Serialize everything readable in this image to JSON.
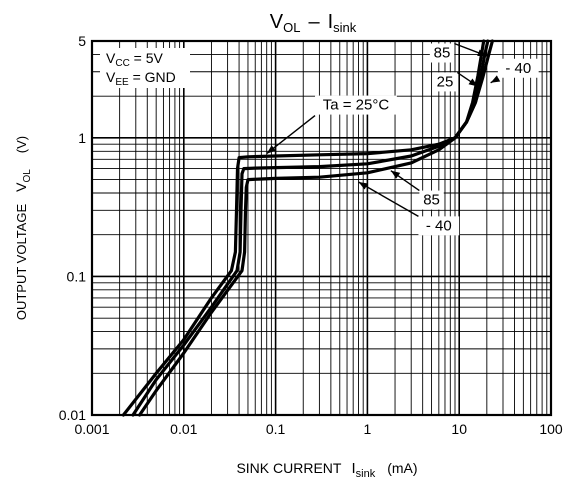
{
  "chart_data": {
    "type": "line",
    "title": {
      "main": "V",
      "main_sub": "OL",
      "sep": "–",
      "rhs": "I",
      "rhs_sub": "sink"
    },
    "xlabel": {
      "main": "SINK CURRENT",
      "sym": "I",
      "sym_sub": "sink",
      "unit": "(mA)"
    },
    "ylabel": {
      "main": "OUTPUT VOLTAGE",
      "sym": "V",
      "sym_sub": "OL",
      "unit": "(V)"
    },
    "x_scale": "log",
    "y_scale": "log",
    "xlim": [
      0.001,
      100
    ],
    "ylim": [
      0.01,
      5
    ],
    "x_ticks": [
      {
        "value": 0.001,
        "label": "0.001"
      },
      {
        "value": 0.01,
        "label": "0.01"
      },
      {
        "value": 0.1,
        "label": "0.1"
      },
      {
        "value": 1,
        "label": "1"
      },
      {
        "value": 10,
        "label": "10"
      },
      {
        "value": 100,
        "label": "100"
      }
    ],
    "y_ticks": [
      {
        "value": 0.01,
        "label": "0.01"
      },
      {
        "value": 0.1,
        "label": "0.1"
      },
      {
        "value": 1,
        "label": "1"
      },
      {
        "value": 5,
        "label": "5"
      }
    ],
    "grid": true,
    "conditions": [
      {
        "sym": "V",
        "sub": "CC",
        "rest": " = 5V"
      },
      {
        "sym": "V",
        "sub": "EE",
        "rest": " = GND"
      }
    ],
    "series": [
      {
        "name": "25",
        "x": [
          0.0022,
          0.005,
          0.01,
          0.02,
          0.033,
          0.0365,
          0.0375,
          0.0385,
          0.04,
          0.05,
          0.1,
          0.3,
          1,
          3,
          6,
          9,
          12,
          14,
          16,
          17.5,
          18.5
        ],
        "y": [
          0.01,
          0.02,
          0.035,
          0.07,
          0.11,
          0.15,
          0.3,
          0.6,
          0.72,
          0.73,
          0.74,
          0.755,
          0.77,
          0.82,
          0.9,
          1.0,
          1.3,
          1.8,
          2.8,
          4.0,
          5.0
        ]
      },
      {
        "name": "85",
        "x": [
          0.0028,
          0.005,
          0.01,
          0.02,
          0.038,
          0.041,
          0.042,
          0.043,
          0.045,
          0.06,
          0.1,
          0.3,
          1,
          3,
          6,
          9,
          12,
          15,
          17,
          19,
          20.5
        ],
        "y": [
          0.01,
          0.018,
          0.032,
          0.06,
          0.11,
          0.15,
          0.3,
          0.55,
          0.6,
          0.605,
          0.61,
          0.62,
          0.65,
          0.74,
          0.87,
          1.0,
          1.3,
          1.8,
          2.7,
          4.0,
          5.0
        ]
      },
      {
        "name": "- 40",
        "x": [
          0.0033,
          0.005,
          0.01,
          0.02,
          0.043,
          0.046,
          0.047,
          0.048,
          0.05,
          0.07,
          0.1,
          0.3,
          1,
          3,
          6,
          9,
          12,
          15,
          18,
          21,
          23
        ],
        "y": [
          0.01,
          0.015,
          0.028,
          0.055,
          0.11,
          0.15,
          0.3,
          0.44,
          0.5,
          0.505,
          0.51,
          0.52,
          0.56,
          0.66,
          0.82,
          1.0,
          1.3,
          1.8,
          2.7,
          4.0,
          5.0
        ]
      }
    ],
    "annotations": [
      {
        "id": "ann-ta",
        "text": "Ta = 25°C",
        "at": [
          0.75,
          1.6
        ],
        "arrow_to": [
          0.08,
          0.77
        ]
      },
      {
        "id": "ann-85-low",
        "text": "85",
        "at": [
          5.0,
          0.33
        ],
        "arrow_to": [
          1.8,
          0.58
        ]
      },
      {
        "id": "ann-m40-low",
        "text": "- 40",
        "at": [
          6.0,
          0.215
        ],
        "arrow_to": [
          0.8,
          0.48
        ]
      },
      {
        "id": "ann-85-high",
        "text": "85",
        "at": [
          6.5,
          3.8
        ],
        "arrow_to": [
          20.0,
          3.9
        ]
      },
      {
        "id": "ann-25-high",
        "text": "25",
        "at": [
          7.0,
          2.35
        ],
        "arrow_to": [
          16.0,
          2.35
        ]
      },
      {
        "id": "ann-m40-high",
        "text": "- 40",
        "at": [
          44.0,
          2.95
        ],
        "arrow_to": [
          22.0,
          2.5
        ]
      }
    ]
  }
}
